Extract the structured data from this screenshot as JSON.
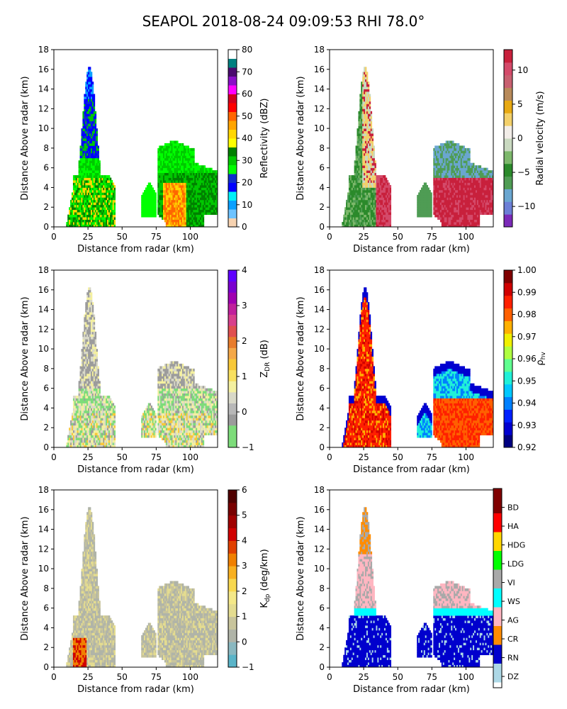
{
  "title": "SEAPOL 2018-08-24 09:09:53 RHI 78.0°",
  "chart_data": [
    {
      "type": "heatmap",
      "id": "reflectivity",
      "xlabel": "Distance from radar (km)",
      "ylabel": "Distance Above radar  (km)",
      "xlim": [
        0,
        120
      ],
      "ylim": [
        0,
        18
      ],
      "xticks": [
        "0",
        "25",
        "50",
        "75",
        "100"
      ],
      "yticks": [
        "0",
        "2",
        "4",
        "6",
        "8",
        "10",
        "12",
        "14",
        "16",
        "18"
      ],
      "colorbar": {
        "label": "Reflectivity (dBZ)",
        "range": [
          0,
          80
        ],
        "ticks": [
          "0",
          "10",
          "20",
          "30",
          "40",
          "50",
          "60",
          "70",
          "80"
        ],
        "colors": [
          "#f6d2b0",
          "#6ec3ff",
          "#0aa0ff",
          "#00f0f8",
          "#0000ff",
          "#0f2ecd",
          "#00ff00",
          "#00c800",
          "#008000",
          "#ffff00",
          "#ffd700",
          "#ffa500",
          "#ff6600",
          "#ff0000",
          "#d2001e",
          "#ff00ff",
          "#8a0fc8",
          "#4a0a6e",
          "#008080",
          "#ffffff"
        ]
      }
    },
    {
      "type": "heatmap",
      "id": "velocity",
      "xlabel": "Distance from radar (km)",
      "ylabel": "Distance Above radar  (km)",
      "xlim": [
        0,
        120
      ],
      "ylim": [
        0,
        18
      ],
      "xticks": [
        "0",
        "25",
        "50",
        "75",
        "100"
      ],
      "yticks": [
        "0",
        "2",
        "4",
        "6",
        "8",
        "10",
        "12",
        "14",
        "16",
        "18"
      ],
      "colorbar": {
        "label": "Radial velocity (m/s)",
        "range": [
          -13,
          13
        ],
        "ticks": [
          "−10",
          "−5",
          "0",
          "5",
          "10"
        ],
        "tick_values": [
          -10,
          -5,
          0,
          5,
          10
        ],
        "colors": [
          "#7b2ab8",
          "#6c7fd6",
          "#6aa6d0",
          "#4f9c54",
          "#2b8a2b",
          "#7db86b",
          "#c9d9c0",
          "#f2ede8",
          "#f3d06a",
          "#e8a912",
          "#b88a5a",
          "#c86070",
          "#d44a6a",
          "#c8203c"
        ]
      }
    },
    {
      "type": "heatmap",
      "id": "zdr",
      "xlabel": "Distance from radar (km)",
      "ylabel": "Distance Above radar  (km)",
      "xlim": [
        0,
        120
      ],
      "ylim": [
        0,
        18
      ],
      "xticks": [
        "0",
        "25",
        "50",
        "75",
        "100"
      ],
      "yticks": [
        "0",
        "2",
        "4",
        "6",
        "8",
        "10",
        "12",
        "14",
        "16",
        "18"
      ],
      "colorbar": {
        "label": "Z_DR (dB)",
        "label_main": "Z",
        "label_sub": "DR",
        "label_rest": " (dB)",
        "range": [
          -1,
          4
        ],
        "ticks": [
          "−1",
          "0",
          "1",
          "2",
          "3",
          "4"
        ],
        "tick_values": [
          -1,
          0,
          1,
          2,
          3,
          4
        ],
        "colors": [
          "#7ddc7a",
          "#7ddc7a",
          "#9c9c9c",
          "#b8b8b8",
          "#d8d8c8",
          "#f4f0a0",
          "#f8e060",
          "#f8c838",
          "#f4a848",
          "#e87c2c",
          "#e05050",
          "#d8408c",
          "#c0209c",
          "#a000b0",
          "#7a00d0",
          "#6000ff"
        ]
      }
    },
    {
      "type": "heatmap",
      "id": "rhohv",
      "xlabel": "Distance from radar (km)",
      "ylabel": "Distance Above radar  (km)",
      "xlim": [
        0,
        120
      ],
      "ylim": [
        0,
        18
      ],
      "xticks": [
        "0",
        "25",
        "50",
        "75",
        "100"
      ],
      "yticks": [
        "0",
        "2",
        "4",
        "6",
        "8",
        "10",
        "12",
        "14",
        "16",
        "18"
      ],
      "colorbar": {
        "label": "ρ_hv",
        "label_main": "ρ",
        "label_sub": "hv",
        "range": [
          0.92,
          1.0
        ],
        "ticks": [
          "0.92",
          "0.93",
          "0.94",
          "0.95",
          "0.96",
          "0.97",
          "0.98",
          "0.99",
          "1.00"
        ],
        "colors": [
          "#000080",
          "#0000d0",
          "#0020ff",
          "#0080ff",
          "#00c8ff",
          "#20f0d8",
          "#60ff90",
          "#b0ff40",
          "#f0f000",
          "#ffb000",
          "#ff6000",
          "#ff2000",
          "#d00000",
          "#800000"
        ]
      }
    },
    {
      "type": "heatmap",
      "id": "kdp",
      "xlabel": "Distance from radar (km)",
      "ylabel": "Distance Above radar  (km)",
      "xlim": [
        0,
        120
      ],
      "ylim": [
        0,
        18
      ],
      "xticks": [
        "0",
        "25",
        "50",
        "75",
        "100"
      ],
      "yticks": [
        "0",
        "2",
        "4",
        "6",
        "8",
        "10",
        "12",
        "14",
        "16",
        "18"
      ],
      "colorbar": {
        "label": "K_dp (deg/km)",
        "label_main": "K",
        "label_sub": "dp",
        "label_rest": " (deg/km)",
        "range": [
          -1,
          6
        ],
        "ticks": [
          "−1",
          "0",
          "1",
          "2",
          "3",
          "4",
          "5",
          "6"
        ],
        "tick_values": [
          -1,
          0,
          1,
          2,
          3,
          4,
          5,
          6
        ],
        "colors": [
          "#5ab4c8",
          "#8ab8c0",
          "#b0b4a8",
          "#c8c49c",
          "#e4dc90",
          "#f4e888",
          "#f8d850",
          "#f8b020",
          "#f08000",
          "#e04000",
          "#d00000",
          "#a00000",
          "#780000",
          "#500000"
        ]
      }
    },
    {
      "type": "heatmap",
      "id": "hydroclass",
      "xlabel": "Distance from radar (km)",
      "ylabel": "Distance Above radar  (km)",
      "xlim": [
        0,
        120
      ],
      "ylim": [
        0,
        18
      ],
      "xticks": [
        "0",
        "25",
        "50",
        "75",
        "100"
      ],
      "yticks": [
        "0",
        "2",
        "4",
        "6",
        "8",
        "10",
        "12",
        "14",
        "16",
        "18"
      ],
      "colorbar": {
        "label": "",
        "categorical": true,
        "categories": [
          "DZ",
          "RN",
          "CR",
          "AG",
          "WS",
          "VI",
          "LDG",
          "HDG",
          "HA",
          "BD"
        ],
        "colors": [
          "#add8e6",
          "#0000cd",
          "#ff8c00",
          "#ffb6c1",
          "#00ffff",
          "#a9a9a9",
          "#00ff00",
          "#ffd700",
          "#ff0000",
          "#800000"
        ],
        "edge_colors": {
          "bottom": "#ffffff",
          "top": "#800000"
        }
      }
    }
  ]
}
